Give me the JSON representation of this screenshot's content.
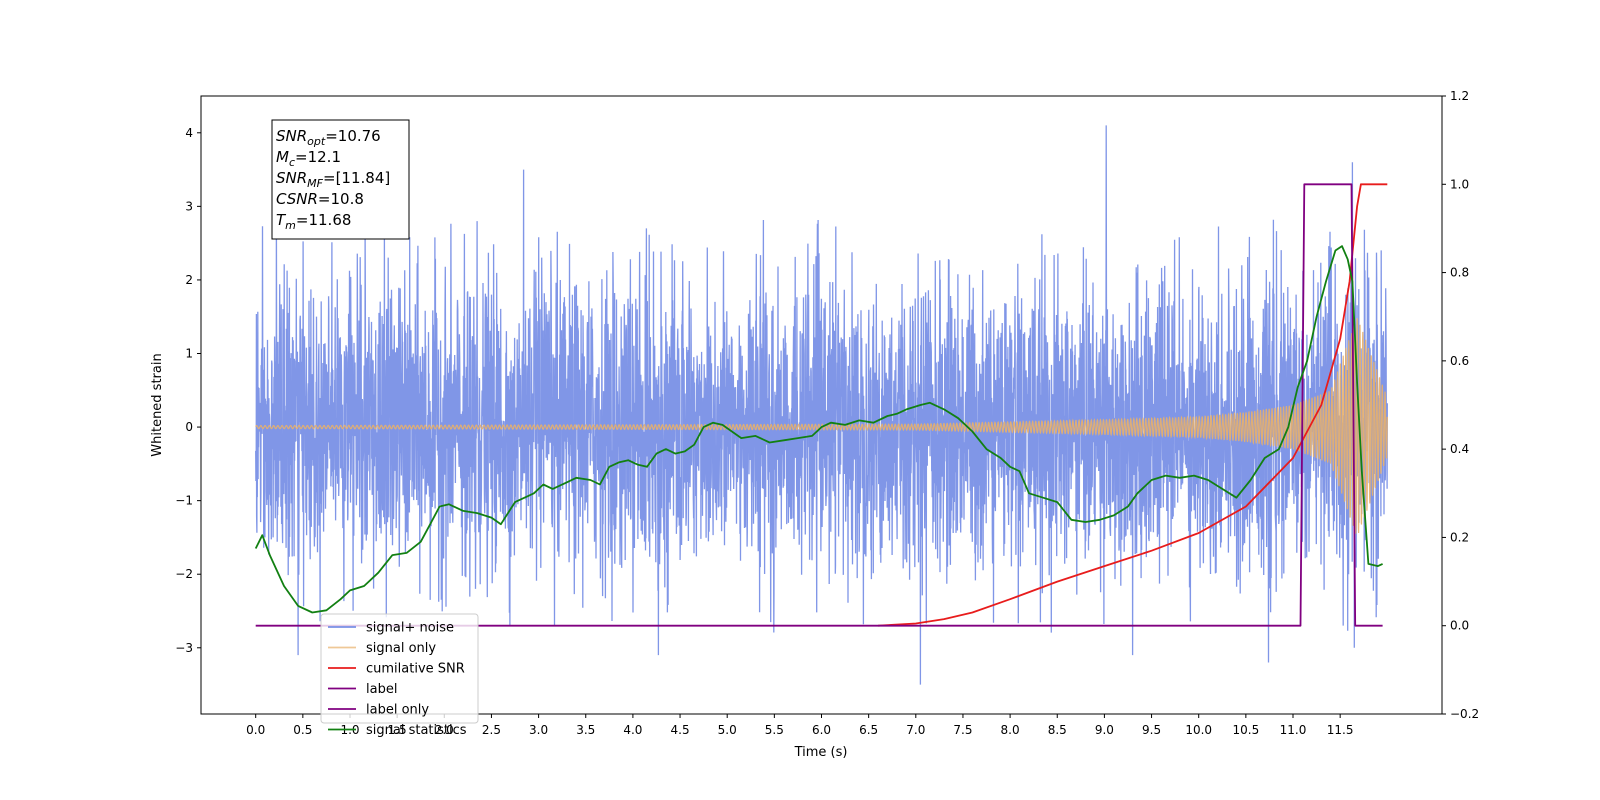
{
  "chart_data": {
    "type": "line",
    "title": "",
    "xlabel": "Time (s)",
    "ylabel": "Whitened strain",
    "y2label": "",
    "xlim": [
      -0.58,
      12.58
    ],
    "ylim": [
      -3.9,
      4.5
    ],
    "y2lim": [
      -0.2,
      1.2
    ],
    "x_ticks": [
      0.0,
      0.5,
      1.0,
      1.5,
      2.0,
      2.5,
      3.0,
      3.5,
      4.0,
      4.5,
      5.0,
      5.5,
      6.0,
      6.5,
      7.0,
      7.5,
      8.0,
      8.5,
      9.0,
      9.5,
      10.0,
      10.5,
      11.0,
      11.5
    ],
    "x_tick_labels": [
      "0.0",
      "0.5",
      "1.0",
      "1.5",
      "2.0",
      "2.5",
      "3.0",
      "3.5",
      "4.0",
      "4.5",
      "5.0",
      "5.5",
      "6.0",
      "6.5",
      "7.0",
      "7.5",
      "8.0",
      "8.5",
      "9.0",
      "9.5",
      "10.0",
      "10.5",
      "11.0",
      "11.5"
    ],
    "y_ticks": [
      -3,
      -2,
      -1,
      0,
      1,
      2,
      3,
      4
    ],
    "y_tick_labels": [
      "−3",
      "−2",
      "−1",
      "0",
      "1",
      "2",
      "3",
      "4"
    ],
    "y2_ticks": [
      -0.2,
      0.0,
      0.2,
      0.4,
      0.6,
      0.8,
      1.0,
      1.2
    ],
    "y2_tick_labels": [
      "−0.2",
      "0.0",
      "0.2",
      "0.4",
      "0.6",
      "0.8",
      "1.0",
      "1.2"
    ],
    "grid": false,
    "legend_position": "lower-left",
    "annotation_box": {
      "position": "upper-left",
      "lines": [
        {
          "base": "SNR",
          "sub": "opt",
          "value": "=10.76"
        },
        {
          "base": "M",
          "sub": "c",
          "value": "=12.1"
        },
        {
          "base": "SNR",
          "sub": "MF",
          "value": "=[11.84]"
        },
        {
          "base": "CSNR",
          "sub": "",
          "value": "=10.8"
        },
        {
          "base": "T",
          "sub": "m",
          "value": "=11.68"
        }
      ]
    },
    "series": [
      {
        "name": "signal+ noise",
        "axis": "left",
        "color": "#7990e6",
        "kind": "noise",
        "x_range": [
          0.0,
          12.0
        ],
        "envelope_typical": 1.6,
        "notable_peaks": [
          {
            "x": 9.02,
            "y": 4.1
          },
          {
            "x": 11.63,
            "y": 3.6
          },
          {
            "x": 2.84,
            "y": 3.5
          },
          {
            "x": 7.05,
            "y": -3.5
          },
          {
            "x": 10.74,
            "y": -3.2
          },
          {
            "x": 4.27,
            "y": -3.1
          },
          {
            "x": 0.45,
            "y": -3.1
          },
          {
            "x": 9.3,
            "y": -3.1
          },
          {
            "x": 11.65,
            "y": -3.0
          }
        ]
      },
      {
        "name": "signal only",
        "axis": "left",
        "color": "#e8b06a",
        "kind": "chirp",
        "x_range": [
          0.0,
          12.0
        ],
        "amplitude_at_x": [
          [
            0.0,
            0.02
          ],
          [
            7.0,
            0.04
          ],
          [
            8.0,
            0.07
          ],
          [
            9.0,
            0.1
          ],
          [
            10.0,
            0.14
          ],
          [
            10.5,
            0.2
          ],
          [
            11.0,
            0.3
          ],
          [
            11.4,
            0.5
          ],
          [
            11.68,
            1.5
          ],
          [
            12.0,
            0.4
          ]
        ]
      },
      {
        "name": "cumilative SNR",
        "axis": "right",
        "color": "#e81c1c",
        "x": [
          6.6,
          7.0,
          7.3,
          7.6,
          8.0,
          8.5,
          9.0,
          9.5,
          10.0,
          10.5,
          11.0,
          11.3,
          11.5,
          11.6,
          11.68,
          11.72,
          12.0
        ],
        "y": [
          0.0,
          0.005,
          0.015,
          0.03,
          0.06,
          0.1,
          0.135,
          0.17,
          0.21,
          0.27,
          0.38,
          0.5,
          0.65,
          0.78,
          0.95,
          1.0,
          1.0
        ]
      },
      {
        "name": "label",
        "axis": "right",
        "color": "#800080",
        "x": [
          0.0,
          11.08,
          11.12,
          11.62,
          11.66,
          11.95
        ],
        "y": [
          0.0,
          0.0,
          1.0,
          1.0,
          0.0,
          0.0
        ]
      },
      {
        "name": "label only",
        "axis": "right",
        "color": "#800080",
        "x": [],
        "y": []
      },
      {
        "name": "signal statistics",
        "axis": "right",
        "color": "#128012",
        "x": [
          0.0,
          0.07,
          0.15,
          0.3,
          0.45,
          0.6,
          0.75,
          0.9,
          1.0,
          1.15,
          1.3,
          1.45,
          1.6,
          1.75,
          1.85,
          1.95,
          2.05,
          2.2,
          2.35,
          2.5,
          2.6,
          2.75,
          2.85,
          2.95,
          3.05,
          3.15,
          3.3,
          3.4,
          3.55,
          3.65,
          3.75,
          3.85,
          3.95,
          4.05,
          4.15,
          4.25,
          4.35,
          4.45,
          4.55,
          4.65,
          4.75,
          4.85,
          4.95,
          5.05,
          5.15,
          5.3,
          5.45,
          5.6,
          5.75,
          5.9,
          6.0,
          6.1,
          6.25,
          6.4,
          6.55,
          6.7,
          6.8,
          6.9,
          7.05,
          7.15,
          7.3,
          7.45,
          7.6,
          7.75,
          7.9,
          8.0,
          8.1,
          8.2,
          8.35,
          8.5,
          8.65,
          8.8,
          8.95,
          9.1,
          9.25,
          9.35,
          9.5,
          9.65,
          9.8,
          9.95,
          10.1,
          10.25,
          10.4,
          10.55,
          10.7,
          10.85,
          10.95,
          11.05,
          11.15,
          11.25,
          11.35,
          11.45,
          11.52,
          11.58,
          11.63,
          11.68,
          11.73,
          11.8,
          11.9,
          11.95
        ],
        "y": [
          0.175,
          0.205,
          0.16,
          0.09,
          0.045,
          0.03,
          0.035,
          0.06,
          0.08,
          0.09,
          0.12,
          0.16,
          0.165,
          0.19,
          0.23,
          0.27,
          0.275,
          0.26,
          0.255,
          0.245,
          0.23,
          0.28,
          0.29,
          0.3,
          0.32,
          0.31,
          0.325,
          0.335,
          0.33,
          0.32,
          0.36,
          0.37,
          0.375,
          0.365,
          0.36,
          0.39,
          0.4,
          0.39,
          0.395,
          0.41,
          0.45,
          0.46,
          0.455,
          0.44,
          0.425,
          0.43,
          0.415,
          0.42,
          0.425,
          0.43,
          0.45,
          0.46,
          0.455,
          0.465,
          0.46,
          0.475,
          0.48,
          0.49,
          0.5,
          0.505,
          0.49,
          0.47,
          0.44,
          0.4,
          0.38,
          0.36,
          0.35,
          0.3,
          0.29,
          0.28,
          0.24,
          0.235,
          0.24,
          0.25,
          0.27,
          0.3,
          0.33,
          0.34,
          0.335,
          0.34,
          0.33,
          0.31,
          0.29,
          0.33,
          0.38,
          0.4,
          0.45,
          0.54,
          0.6,
          0.7,
          0.78,
          0.85,
          0.86,
          0.83,
          0.78,
          0.55,
          0.35,
          0.14,
          0.135,
          0.14
        ]
      }
    ]
  }
}
